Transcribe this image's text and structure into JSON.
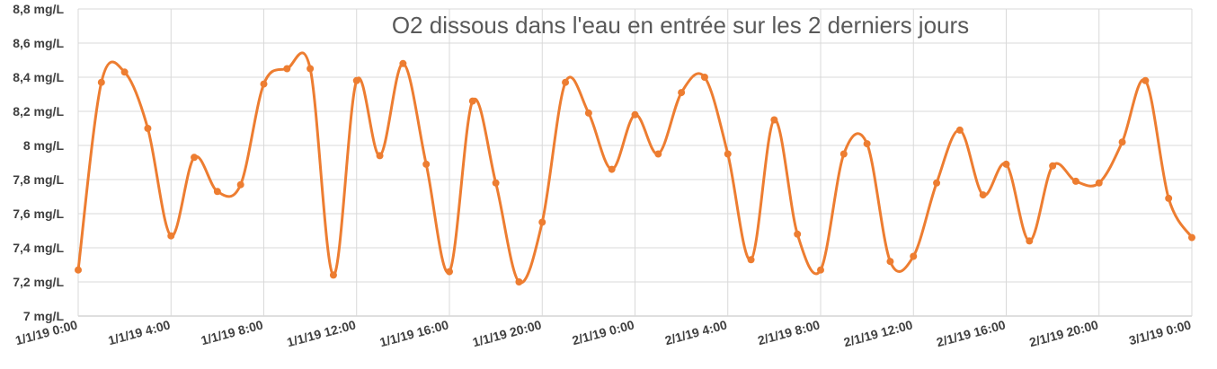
{
  "chart_data": {
    "type": "line",
    "title": "O2 dissous dans l'eau en entrée sur les 2 derniers jours",
    "xlabel": "",
    "ylabel": "",
    "ylim": [
      7,
      8.8
    ],
    "yticks": [
      7,
      7.2,
      7.4,
      7.6,
      7.8,
      8,
      8.2,
      8.4,
      8.6,
      8.8
    ],
    "ytick_labels": [
      "7 mg/L",
      "7,2 mg/L",
      "7,4 mg/L",
      "7,6 mg/L",
      "7,8 mg/L",
      "8 mg/L",
      "8,2 mg/L",
      "8,4 mg/L",
      "8,6 mg/L",
      "8,8 mg/L"
    ],
    "xlim_hours": [
      0,
      48
    ],
    "xtick_hours": [
      0,
      4,
      8,
      12,
      16,
      20,
      24,
      28,
      32,
      36,
      40,
      44,
      48
    ],
    "xtick_labels": [
      "1/1/19 0:00",
      "1/1/19 4:00",
      "1/1/19 8:00",
      "1/1/19 12:00",
      "1/1/19 16:00",
      "1/1/19 20:00",
      "2/1/19 0:00",
      "2/1/19 4:00",
      "2/1/19 8:00",
      "2/1/19 12:00",
      "2/1/19 16:00",
      "2/1/19 20:00",
      "3/1/19 0:00"
    ],
    "grid": true,
    "smooth": true,
    "color": "#ed7d31",
    "series": [
      {
        "x": [
          "1/1/19 0:00",
          "1/1/19 1:00",
          "1/1/19 2:00",
          "1/1/19 3:00",
          "1/1/19 4:00",
          "1/1/19 5:00",
          "1/1/19 6:00",
          "1/1/19 7:00",
          "1/1/19 8:00",
          "1/1/19 9:00",
          "1/1/19 10:00",
          "1/1/19 11:00",
          "1/1/19 12:00",
          "1/1/19 13:00",
          "1/1/19 14:00",
          "1/1/19 15:00",
          "1/1/19 16:00",
          "1/1/19 17:00",
          "1/1/19 18:00",
          "1/1/19 19:00",
          "1/1/19 20:00",
          "1/1/19 21:00",
          "1/1/19 22:00",
          "1/1/19 23:00",
          "2/1/19 0:00",
          "2/1/19 1:00",
          "2/1/19 2:00",
          "2/1/19 3:00",
          "2/1/19 4:00",
          "2/1/19 5:00",
          "2/1/19 6:00",
          "2/1/19 7:00",
          "2/1/19 8:00",
          "2/1/19 9:00",
          "2/1/19 10:00",
          "2/1/19 11:00",
          "2/1/19 12:00",
          "2/1/19 13:00",
          "2/1/19 14:00",
          "2/1/19 15:00",
          "2/1/19 16:00",
          "2/1/19 17:00",
          "2/1/19 18:00",
          "2/1/19 19:00",
          "2/1/19 20:00",
          "2/1/19 21:00",
          "2/1/19 22:00",
          "2/1/19 23:00",
          "3/1/19 0:00"
        ],
        "values": [
          7.27,
          8.37,
          8.43,
          8.1,
          7.47,
          7.93,
          7.73,
          7.77,
          8.36,
          8.45,
          8.45,
          7.24,
          8.38,
          7.94,
          8.48,
          7.89,
          7.26,
          8.26,
          7.78,
          7.2,
          7.55,
          8.37,
          8.19,
          7.86,
          8.18,
          7.95,
          8.31,
          8.4,
          7.95,
          7.33,
          8.15,
          7.48,
          7.27,
          7.95,
          8.01,
          7.32,
          7.35,
          7.78,
          8.09,
          7.71,
          7.89,
          7.44,
          7.88,
          7.79,
          7.78,
          8.02,
          8.38,
          7.69,
          7.46
        ]
      }
    ]
  }
}
